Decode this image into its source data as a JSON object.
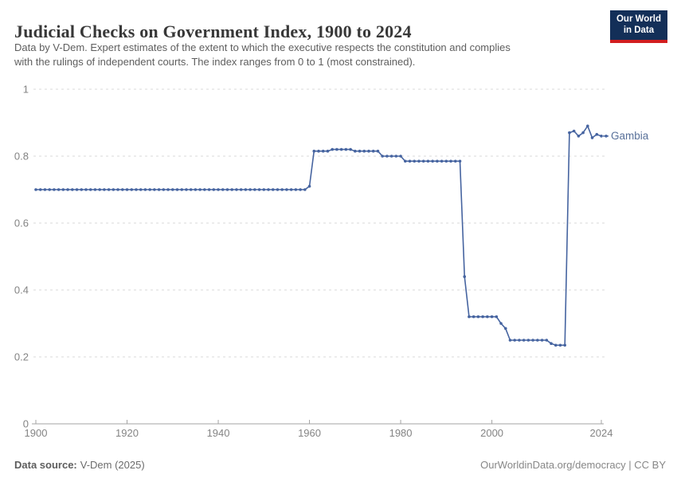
{
  "header": {
    "title": "Judicial Checks on Government Index, 1900 to 2024",
    "subtitle_line1": "Data by V-Dem. Expert estimates of the extent to which the executive respects the constitution and complies",
    "subtitle_line2": "with the rulings of independent courts. The index ranges from 0 to 1 (most constrained).",
    "logo": {
      "line1": "Our World",
      "line2": "in Data",
      "bg_color": "#132f58",
      "bar_color": "#d21e1f"
    }
  },
  "footer": {
    "source_label": "Data source:",
    "source_value": "V-Dem (2025)",
    "link_text": "OurWorldinData.org/democracy | CC BY"
  },
  "chart_data": {
    "type": "line",
    "title": "Judicial Checks on Government Index, 1900 to 2024",
    "xlabel": "",
    "ylabel": "",
    "grid": "horizontal-dashed",
    "legend_position": "end-of-line-label",
    "x_axis": {
      "min": 1900,
      "max": 2024,
      "ticks": [
        1900,
        1920,
        1940,
        1960,
        1980,
        2000,
        2024
      ]
    },
    "y_axis": {
      "min": 0,
      "max": 1,
      "ticks": [
        0,
        0.2,
        0.4,
        0.6,
        0.8,
        1
      ],
      "tick_labels": [
        "0",
        "0.2",
        "0.4",
        "0.6",
        "0.8",
        "1"
      ]
    },
    "colors": {
      "line": "#4664A0",
      "end_label": "#587099",
      "gridline": "#dadada",
      "axis": "#a3a3a3",
      "tick_text": "#848484"
    },
    "series": [
      {
        "name": "Gambia",
        "color": "#4664A0",
        "start_year": 1900,
        "values": [
          0.7,
          0.7,
          0.7,
          0.7,
          0.7,
          0.7,
          0.7,
          0.7,
          0.7,
          0.7,
          0.7,
          0.7,
          0.7,
          0.7,
          0.7,
          0.7,
          0.7,
          0.7,
          0.7,
          0.7,
          0.7,
          0.7,
          0.7,
          0.7,
          0.7,
          0.7,
          0.7,
          0.7,
          0.7,
          0.7,
          0.7,
          0.7,
          0.7,
          0.7,
          0.7,
          0.7,
          0.7,
          0.7,
          0.7,
          0.7,
          0.7,
          0.7,
          0.7,
          0.7,
          0.7,
          0.7,
          0.7,
          0.7,
          0.7,
          0.7,
          0.7,
          0.7,
          0.7,
          0.7,
          0.7,
          0.7,
          0.7,
          0.7,
          0.7,
          0.7,
          0.71,
          0.815,
          0.815,
          0.815,
          0.815,
          0.82,
          0.82,
          0.82,
          0.82,
          0.82,
          0.815,
          0.815,
          0.815,
          0.815,
          0.815,
          0.815,
          0.8,
          0.8,
          0.8,
          0.8,
          0.8,
          0.785,
          0.785,
          0.785,
          0.785,
          0.785,
          0.785,
          0.785,
          0.785,
          0.785,
          0.785,
          0.785,
          0.785,
          0.785,
          0.44,
          0.32,
          0.32,
          0.32,
          0.32,
          0.32,
          0.32,
          0.32,
          0.3,
          0.285,
          0.25,
          0.25,
          0.25,
          0.25,
          0.25,
          0.25,
          0.25,
          0.25,
          0.25,
          0.24,
          0.235,
          0.235,
          0.235,
          0.87,
          0.875,
          0.86,
          0.87,
          0.89,
          0.855,
          0.865,
          0.86
        ]
      }
    ]
  }
}
